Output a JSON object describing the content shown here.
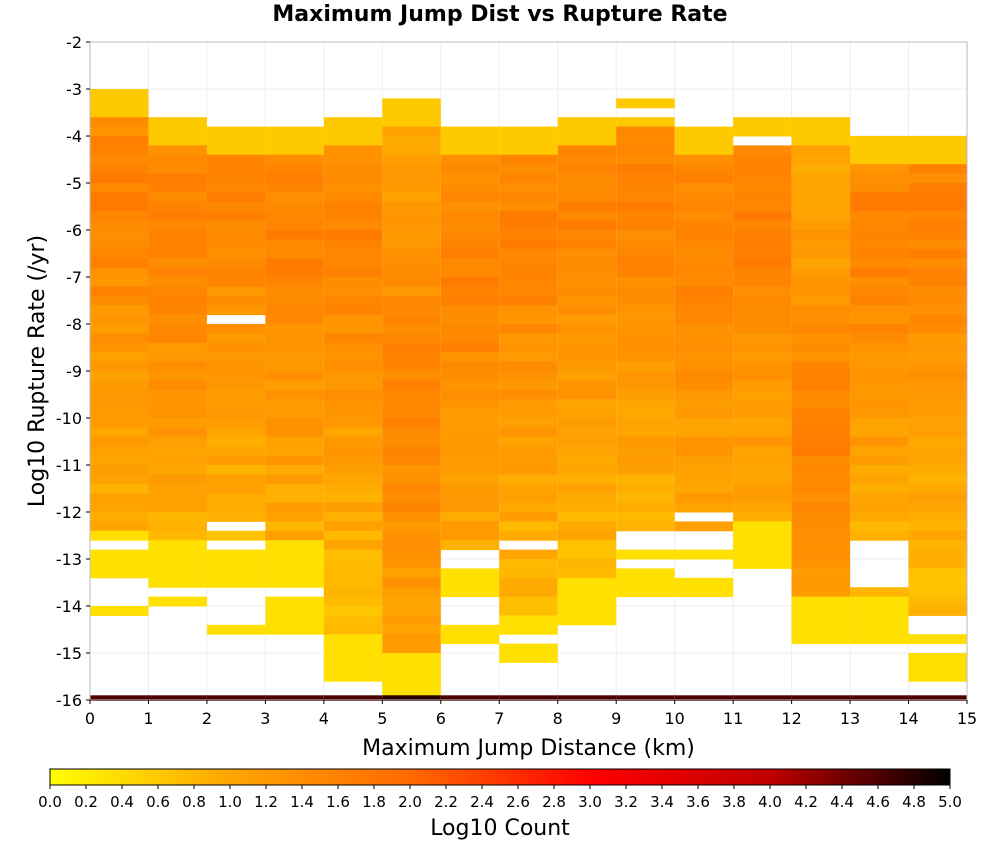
{
  "chart_data": {
    "type": "heatmap",
    "title": "Maximum Jump Dist vs Rupture Rate",
    "xlabel": "Maximum Jump Distance (km)",
    "ylabel": "Log10 Rupture Rate (/yr)",
    "xlim": [
      0,
      15
    ],
    "ylim": [
      -16,
      -2
    ],
    "x_ticks": [
      "0",
      "1",
      "2",
      "3",
      "4",
      "5",
      "6",
      "7",
      "8",
      "9",
      "10",
      "11",
      "12",
      "13",
      "14",
      "15"
    ],
    "y_ticks": [
      "-2",
      "-3",
      "-4",
      "-5",
      "-6",
      "-7",
      "-8",
      "-9",
      "-10",
      "-11",
      "-12",
      "-13",
      "-14",
      "-15",
      "-16"
    ],
    "grid": true,
    "x_bin_width": 1,
    "y_bin_width": 0.2,
    "colorbar": {
      "label": "Log10 Count",
      "min": 0,
      "max": 5,
      "ticks": [
        "0.0",
        "0.2",
        "0.4",
        "0.6",
        "0.8",
        "1.0",
        "1.2",
        "1.4",
        "1.6",
        "1.8",
        "2.0",
        "2.2",
        "2.4",
        "2.6",
        "2.8",
        "3.0",
        "3.2",
        "3.4",
        "3.6",
        "3.8",
        "4.0",
        "4.2",
        "4.4",
        "4.6",
        "4.8",
        "5.0"
      ],
      "colors": [
        "#ffff00",
        "#ffa500",
        "#ff6a00",
        "#ff0000",
        "#c00000",
        "#000000"
      ]
    },
    "bottom_row": {
      "y": -16,
      "values": [
        4.6,
        4.6,
        4.6,
        4.6,
        4.6,
        4.8,
        4.6,
        4.6,
        4.6,
        4.6,
        4.6,
        4.6,
        4.6,
        4.6,
        4.6
      ]
    },
    "columns": [
      {
        "x": 0,
        "y_top": -3.0,
        "y_bottom": -13.2,
        "gaps": [
          [
            -12.6,
            -12.8
          ]
        ],
        "extras": [
          [
            -14.0,
            -14.2
          ]
        ],
        "peak": -5.2
      },
      {
        "x": 1,
        "y_top": -3.6,
        "y_bottom": -13.4,
        "gaps": [],
        "extras": [
          [
            -13.8,
            -14.0
          ]
        ],
        "peak": -6.0
      },
      {
        "x": 2,
        "y_top": -3.8,
        "y_bottom": -13.4,
        "gaps": [
          [
            -7.8,
            -8.0
          ],
          [
            -12.2,
            -12.4
          ],
          [
            -12.6,
            -12.8
          ]
        ],
        "extras": [
          [
            -14.4,
            -14.6
          ]
        ],
        "peak": -5.2
      },
      {
        "x": 3,
        "y_top": -3.8,
        "y_bottom": -13.4,
        "gaps": [],
        "extras": [
          [
            -13.8,
            -14.6
          ]
        ],
        "peak": -6.0
      },
      {
        "x": 4,
        "y_top": -3.6,
        "y_bottom": -15.4,
        "gaps": [],
        "extras": [],
        "peak": -6.0
      },
      {
        "x": 5,
        "y_top": -3.2,
        "y_bottom": -15.8,
        "gaps": [],
        "extras": [],
        "peak": -9.6
      },
      {
        "x": 6,
        "y_top": -3.8,
        "y_bottom": -13.6,
        "gaps": [
          [
            -12.8,
            -13.2
          ]
        ],
        "extras": [
          [
            -14.4,
            -14.8
          ]
        ],
        "peak": -7.0
      },
      {
        "x": 7,
        "y_top": -3.8,
        "y_bottom": -15.0,
        "gaps": [
          [
            -12.6,
            -12.8
          ],
          [
            -14.6,
            -14.8
          ]
        ],
        "extras": [],
        "peak": -6.0
      },
      {
        "x": 8,
        "y_top": -3.6,
        "y_bottom": -14.2,
        "gaps": [],
        "extras": [],
        "peak": -5.4
      },
      {
        "x": 9,
        "y_top": -3.2,
        "y_bottom": -13.6,
        "gaps": [
          [
            -3.4,
            -3.6
          ],
          [
            -12.4,
            -12.8
          ],
          [
            -13.0,
            -13.2
          ]
        ],
        "extras": [],
        "peak": -5.2
      },
      {
        "x": 10,
        "y_top": -3.8,
        "y_bottom": -13.6,
        "gaps": [
          [
            -12.0,
            -12.2
          ],
          [
            -12.4,
            -12.8
          ],
          [
            -13.0,
            -13.4
          ]
        ],
        "extras": [],
        "peak": -6.0
      },
      {
        "x": 11,
        "y_top": -3.6,
        "y_bottom": -13.0,
        "gaps": [
          [
            -4.0,
            -4.2
          ]
        ],
        "extras": [],
        "peak": -6.0
      },
      {
        "x": 12,
        "y_top": -3.6,
        "y_bottom": -14.6,
        "gaps": [],
        "extras": [],
        "peak": -10.4
      },
      {
        "x": 13,
        "y_top": -4.0,
        "y_bottom": -14.6,
        "gaps": [
          [
            -12.6,
            -13.6
          ]
        ],
        "extras": [],
        "peak": -6.0
      },
      {
        "x": 14,
        "y_top": -4.0,
        "y_bottom": -15.4,
        "gaps": [
          [
            -14.2,
            -14.6
          ],
          [
            -14.8,
            -15.0
          ]
        ],
        "extras": [],
        "peak": -5.6
      }
    ]
  }
}
